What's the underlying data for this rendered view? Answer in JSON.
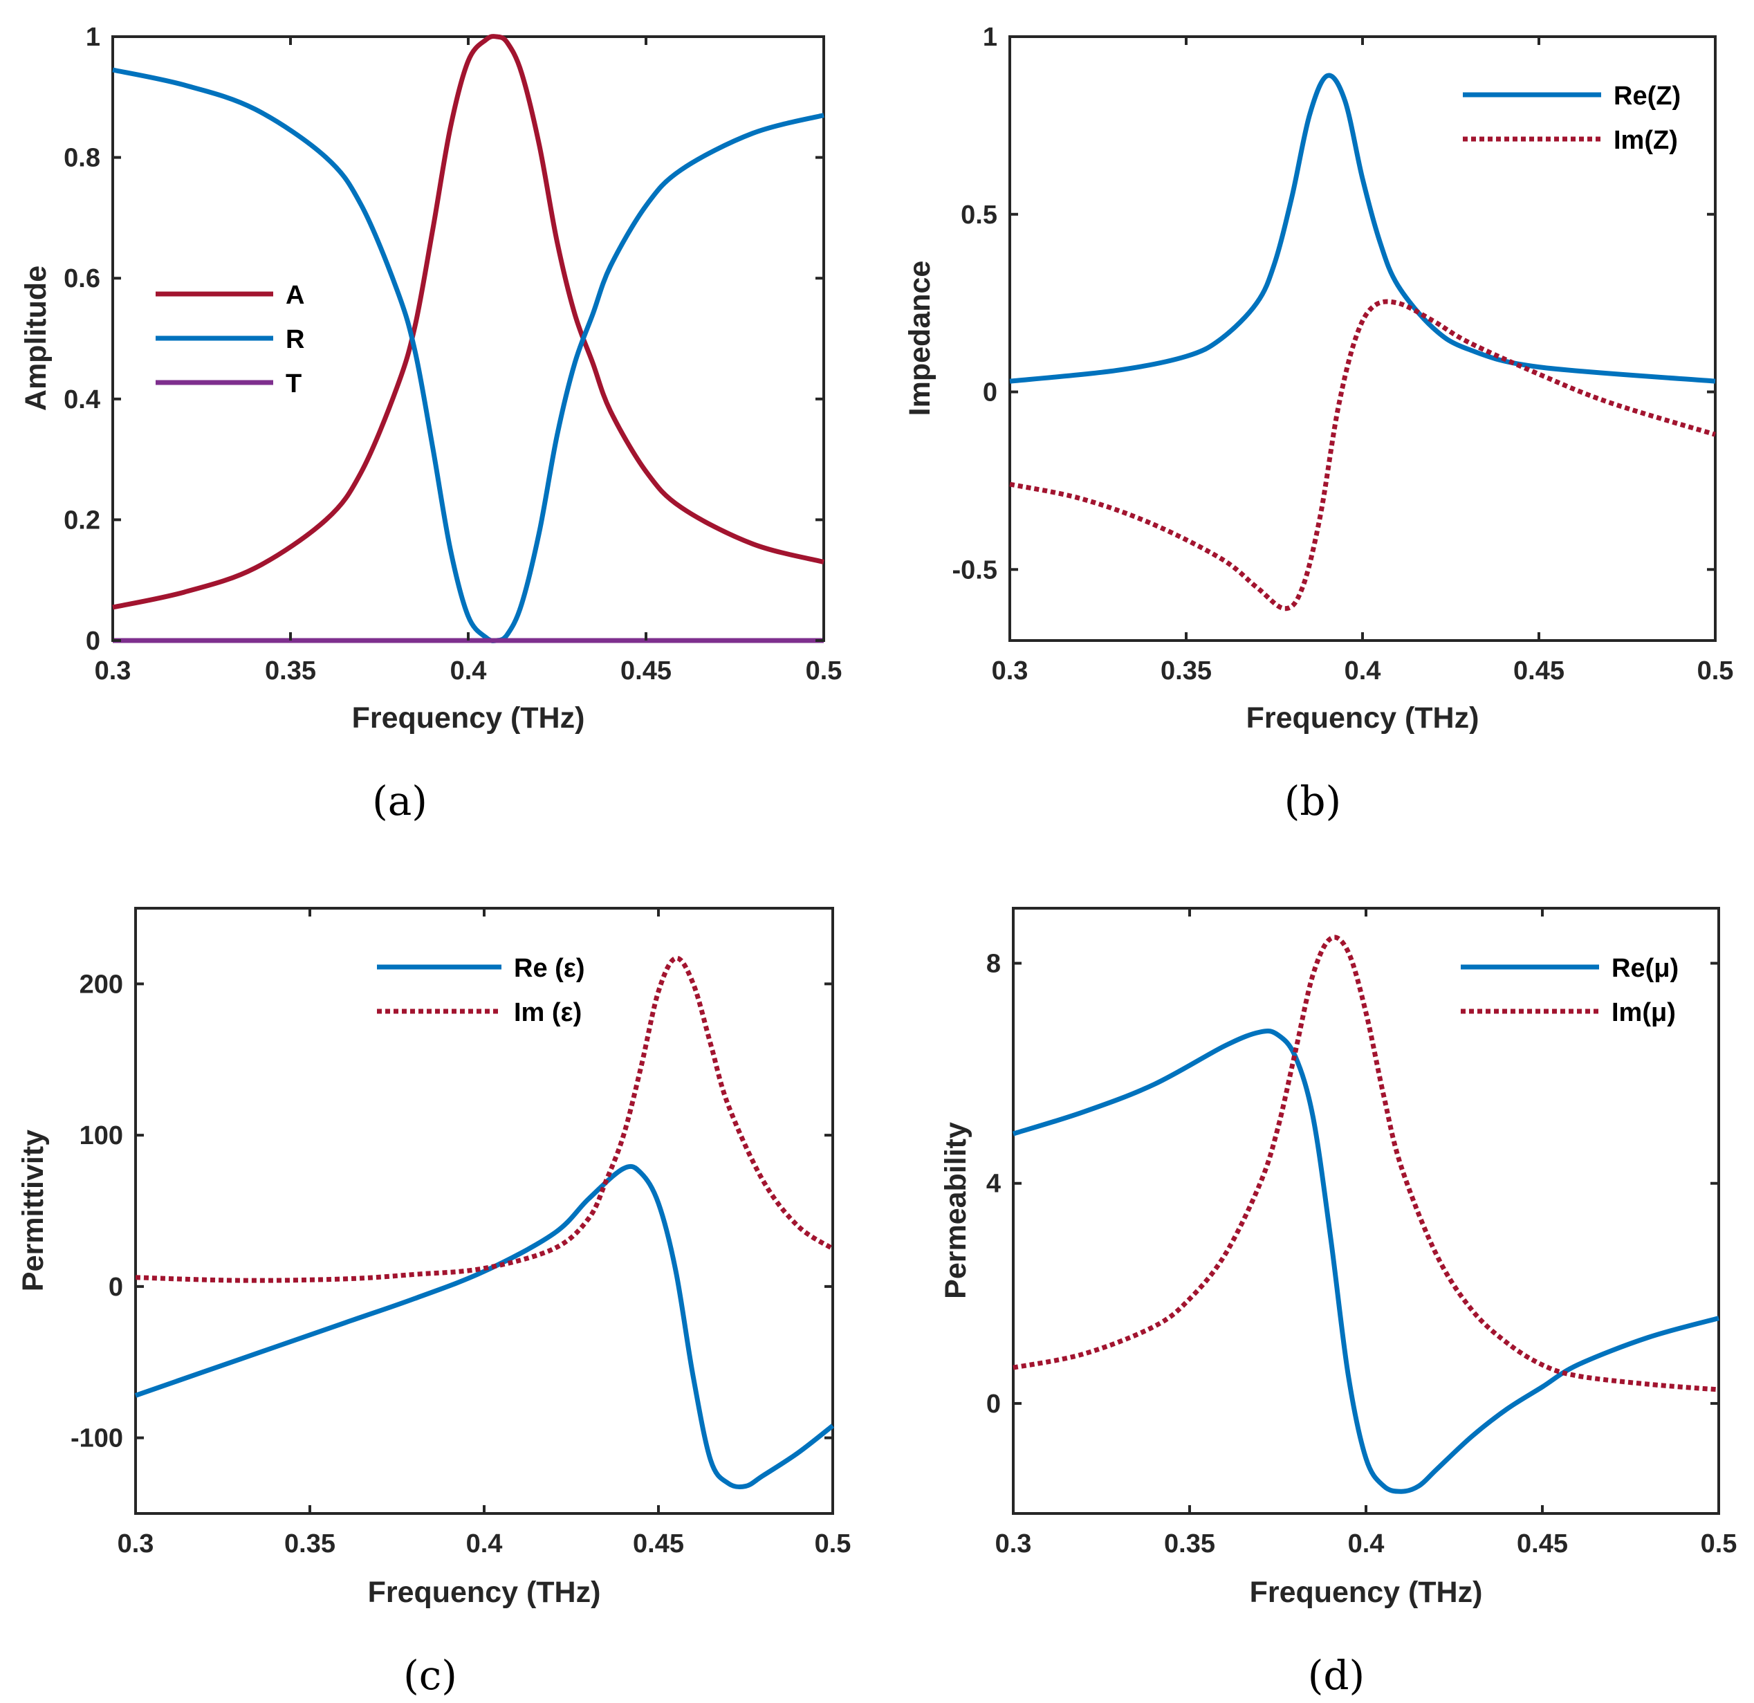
{
  "colors": {
    "blue": "#0072BD",
    "red": "#A2142F",
    "purple": "#7E2F8E",
    "axis": "#262626"
  },
  "chart_data": [
    {
      "panel": "(a)",
      "type": "line",
      "xlabel": "Frequency (THz)",
      "ylabel": "Amplitude",
      "xlim": [
        0.3,
        0.5
      ],
      "ylim": [
        0,
        1
      ],
      "xticks": [
        0.3,
        0.35,
        0.4,
        0.45,
        0.5
      ],
      "xtick_labels": [
        "0.3",
        "0.35",
        "0.4",
        "0.45",
        "0.5"
      ],
      "yticks": [
        0,
        0.2,
        0.4,
        0.6,
        0.8,
        1
      ],
      "ytick_labels": [
        "0",
        "0.2",
        "0.4",
        "0.6",
        "0.8",
        "1"
      ],
      "legend_position": "center-left",
      "series": [
        {
          "name": "A",
          "color": "#A2142F",
          "style": "solid",
          "x": [
            0.3,
            0.32,
            0.34,
            0.36,
            0.37,
            0.38,
            0.385,
            0.39,
            0.395,
            0.4,
            0.405,
            0.408,
            0.411,
            0.415,
            0.42,
            0.425,
            0.43,
            0.435,
            0.44,
            0.45,
            0.46,
            0.48,
            0.5
          ],
          "values": [
            0.055,
            0.08,
            0.12,
            0.2,
            0.28,
            0.42,
            0.52,
            0.68,
            0.85,
            0.96,
            0.995,
            1.0,
            0.99,
            0.94,
            0.82,
            0.66,
            0.54,
            0.46,
            0.38,
            0.28,
            0.22,
            0.16,
            0.13
          ]
        },
        {
          "name": "R",
          "color": "#0072BD",
          "style": "solid",
          "x": [
            0.3,
            0.32,
            0.34,
            0.36,
            0.37,
            0.38,
            0.385,
            0.39,
            0.395,
            0.4,
            0.405,
            0.408,
            0.411,
            0.415,
            0.42,
            0.425,
            0.43,
            0.435,
            0.44,
            0.45,
            0.46,
            0.48,
            0.5
          ],
          "values": [
            0.945,
            0.92,
            0.88,
            0.8,
            0.72,
            0.58,
            0.48,
            0.32,
            0.15,
            0.04,
            0.005,
            0.0,
            0.01,
            0.06,
            0.18,
            0.34,
            0.46,
            0.54,
            0.62,
            0.72,
            0.78,
            0.84,
            0.87
          ]
        },
        {
          "name": "T",
          "color": "#7E2F8E",
          "style": "solid",
          "x": [
            0.3,
            0.5
          ],
          "values": [
            0,
            0
          ]
        }
      ]
    },
    {
      "panel": "(b)",
      "type": "line",
      "xlabel": "Frequency (THz)",
      "ylabel": "Impedance",
      "xlim": [
        0.3,
        0.5
      ],
      "ylim": [
        -0.7,
        1
      ],
      "xticks": [
        0.3,
        0.35,
        0.4,
        0.45,
        0.5
      ],
      "xtick_labels": [
        "0.3",
        "0.35",
        "0.4",
        "0.45",
        "0.5"
      ],
      "yticks": [
        -0.5,
        0,
        0.5,
        1
      ],
      "ytick_labels": [
        "-0.5",
        "0",
        "0.5",
        "1"
      ],
      "legend_position": "top-right",
      "series": [
        {
          "name": "Re(Z)",
          "color": "#0072BD",
          "style": "solid",
          "x": [
            0.3,
            0.33,
            0.35,
            0.36,
            0.37,
            0.375,
            0.38,
            0.385,
            0.39,
            0.395,
            0.4,
            0.405,
            0.41,
            0.42,
            0.43,
            0.45,
            0.5
          ],
          "values": [
            0.03,
            0.06,
            0.1,
            0.15,
            0.25,
            0.36,
            0.55,
            0.78,
            0.89,
            0.82,
            0.6,
            0.42,
            0.3,
            0.18,
            0.12,
            0.07,
            0.03
          ]
        },
        {
          "name": "Im(Z)",
          "color": "#A2142F",
          "style": "dotted",
          "x": [
            0.3,
            0.32,
            0.34,
            0.36,
            0.37,
            0.378,
            0.383,
            0.388,
            0.393,
            0.398,
            0.403,
            0.41,
            0.42,
            0.43,
            0.45,
            0.47,
            0.5
          ],
          "values": [
            -0.26,
            -0.3,
            -0.37,
            -0.47,
            -0.55,
            -0.61,
            -0.55,
            -0.35,
            -0.05,
            0.15,
            0.24,
            0.25,
            0.2,
            0.14,
            0.05,
            -0.03,
            -0.12
          ]
        }
      ]
    },
    {
      "panel": "(c)",
      "type": "line",
      "xlabel": "Frequency (THz)",
      "ylabel": "Permittivity",
      "xlim": [
        0.3,
        0.5
      ],
      "ylim": [
        -150,
        250
      ],
      "xticks": [
        0.3,
        0.35,
        0.4,
        0.45,
        0.5
      ],
      "xtick_labels": [
        "0.3",
        "0.35",
        "0.4",
        "0.45",
        "0.5"
      ],
      "yticks": [
        -100,
        0,
        100,
        200
      ],
      "ytick_labels": [
        "-100",
        "0",
        "100",
        "200"
      ],
      "legend_position": "top-right",
      "series": [
        {
          "name": "Re (ε)",
          "color": "#0072BD",
          "style": "solid",
          "x": [
            0.3,
            0.33,
            0.36,
            0.38,
            0.4,
            0.42,
            0.43,
            0.44,
            0.445,
            0.45,
            0.455,
            0.46,
            0.465,
            0.47,
            0.475,
            0.48,
            0.49,
            0.5
          ],
          "values": [
            -72,
            -48,
            -24,
            -8,
            10,
            35,
            58,
            78,
            75,
            55,
            10,
            -60,
            -115,
            -130,
            -132,
            -125,
            -110,
            -92
          ]
        },
        {
          "name": "Im (ε)",
          "color": "#A2142F",
          "style": "dotted",
          "x": [
            0.3,
            0.33,
            0.36,
            0.38,
            0.4,
            0.42,
            0.43,
            0.435,
            0.44,
            0.445,
            0.45,
            0.455,
            0.46,
            0.465,
            0.47,
            0.48,
            0.49,
            0.5
          ],
          "values": [
            6,
            4,
            5,
            8,
            12,
            25,
            45,
            70,
            100,
            145,
            195,
            217,
            200,
            160,
            120,
            70,
            40,
            25
          ]
        }
      ]
    },
    {
      "panel": "(d)",
      "type": "line",
      "xlabel": "Frequency (THz)",
      "ylabel": "Permeability",
      "xlim": [
        0.3,
        0.5
      ],
      "ylim": [
        -2,
        9
      ],
      "xticks": [
        0.3,
        0.35,
        0.4,
        0.45,
        0.5
      ],
      "xtick_labels": [
        "0.3",
        "0.35",
        "0.4",
        "0.45",
        "0.5"
      ],
      "yticks": [
        0,
        4,
        8
      ],
      "ytick_labels": [
        "0",
        "4",
        "8"
      ],
      "legend_position": "top-right",
      "series": [
        {
          "name": "Re(μ)",
          "color": "#0072BD",
          "style": "solid",
          "x": [
            0.3,
            0.32,
            0.34,
            0.36,
            0.37,
            0.375,
            0.38,
            0.385,
            0.39,
            0.395,
            0.4,
            0.405,
            0.41,
            0.415,
            0.42,
            0.43,
            0.44,
            0.45,
            0.46,
            0.48,
            0.5
          ],
          "values": [
            4.9,
            5.3,
            5.8,
            6.5,
            6.75,
            6.7,
            6.3,
            5.2,
            3.0,
            0.5,
            -1.0,
            -1.5,
            -1.6,
            -1.5,
            -1.2,
            -0.6,
            -0.1,
            0.3,
            0.7,
            1.2,
            1.55
          ]
        },
        {
          "name": "Im(μ)",
          "color": "#A2142F",
          "style": "dotted",
          "x": [
            0.3,
            0.32,
            0.34,
            0.35,
            0.36,
            0.37,
            0.375,
            0.38,
            0.385,
            0.39,
            0.395,
            0.4,
            0.405,
            0.41,
            0.42,
            0.43,
            0.44,
            0.45,
            0.46,
            0.48,
            0.5
          ],
          "values": [
            0.65,
            0.9,
            1.4,
            1.9,
            2.7,
            4.0,
            5.0,
            6.4,
            7.8,
            8.45,
            8.2,
            7.1,
            5.6,
            4.3,
            2.7,
            1.7,
            1.1,
            0.7,
            0.5,
            0.35,
            0.25
          ]
        }
      ]
    }
  ],
  "panel_labels": [
    "(a)",
    "(b)",
    "(c)",
    "(d)"
  ]
}
